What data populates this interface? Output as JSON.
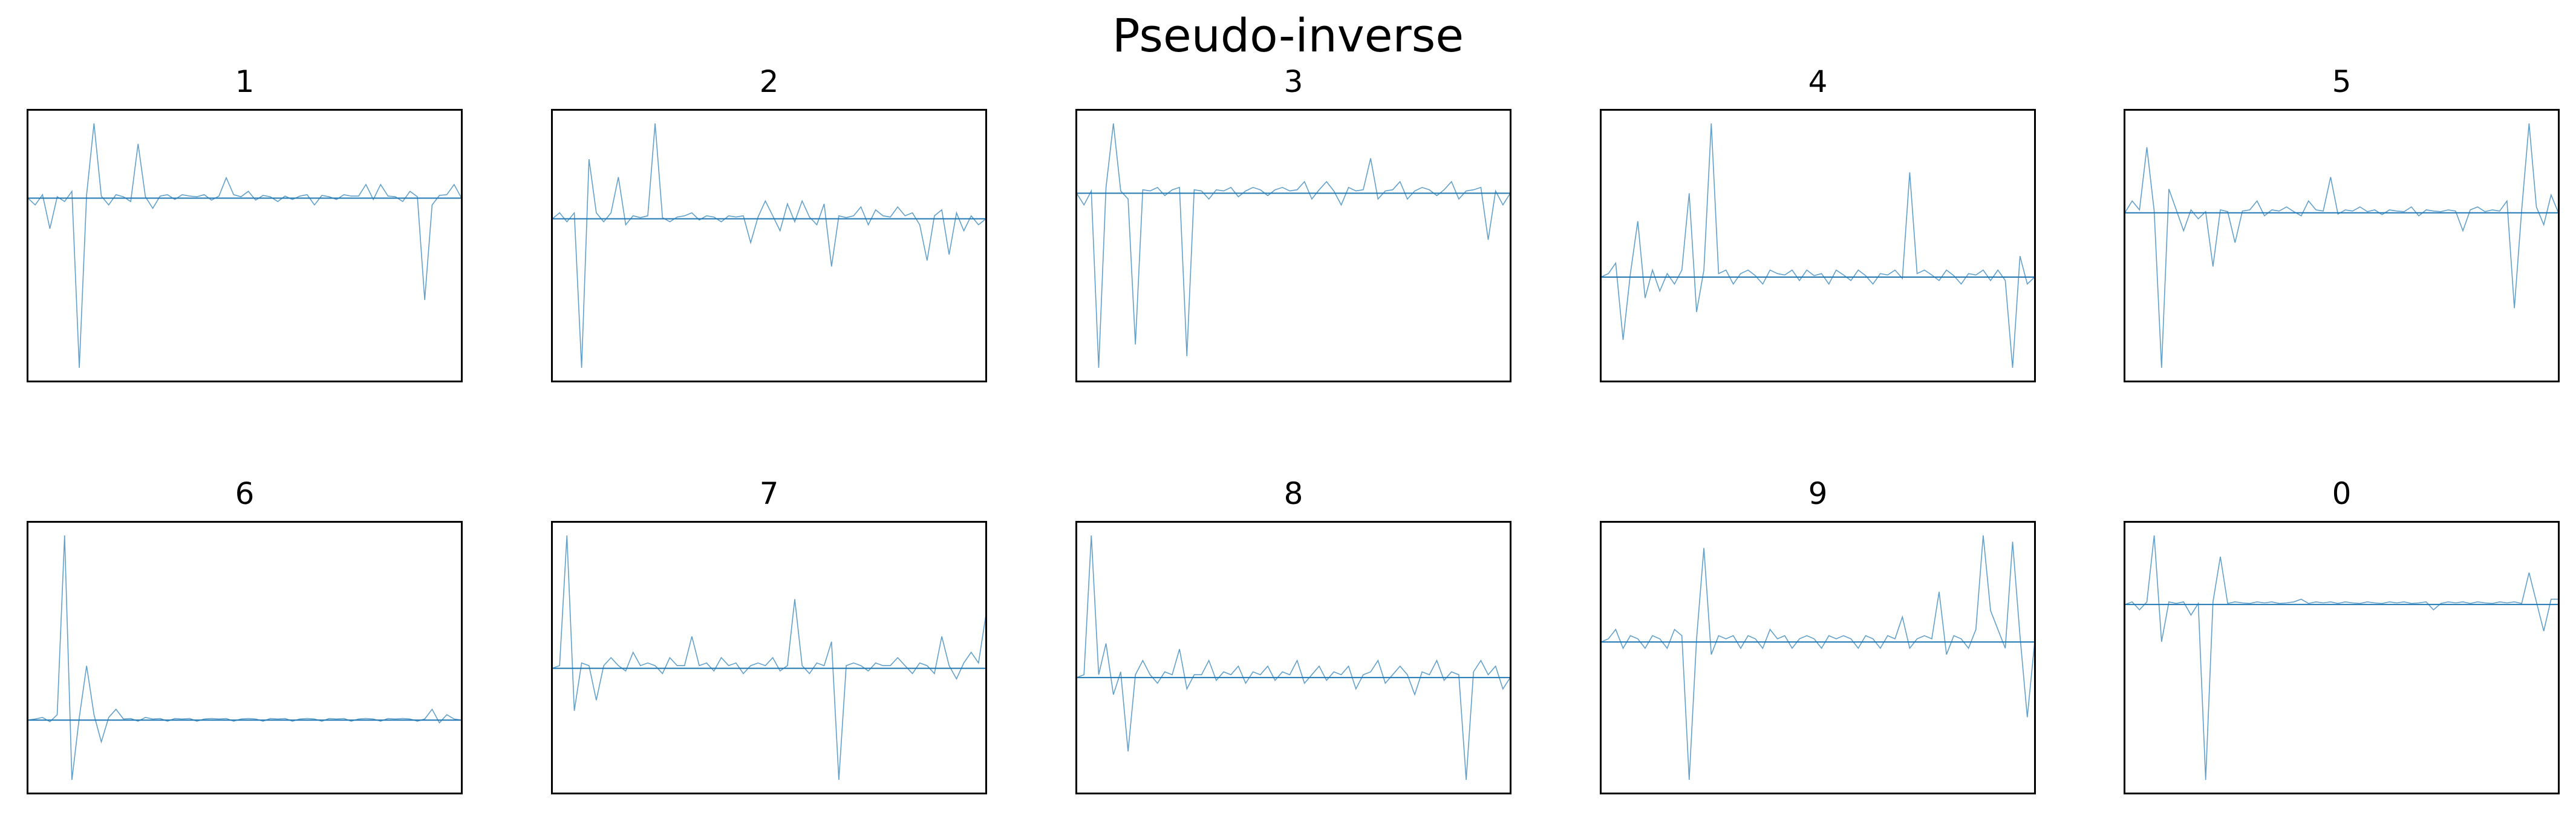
{
  "figure": {
    "title": "Pseudo-inverse",
    "line_color": "#1f77b4",
    "frame_color": "#000000"
  },
  "chart_data": [
    {
      "type": "line",
      "title": "1",
      "series": [
        {
          "values": [
            0,
            -0.1,
            0.05,
            -0.45,
            0.02,
            -0.05,
            0.1,
            -2.5,
            0.05,
            1.1,
            0.03,
            -0.1,
            0.05,
            0.02,
            -0.05,
            0.8,
            0.02,
            -0.15,
            0.03,
            0.05,
            -0.02,
            0.05,
            0.03,
            0.02,
            0.05,
            -0.03,
            0.03,
            0.3,
            0.05,
            0.02,
            0.1,
            -0.03,
            0.04,
            0.02,
            -0.05,
            0.03,
            -0.02,
            0.03,
            0.05,
            -0.1,
            0.04,
            0.02,
            -0.02,
            0.05,
            0.03,
            0.03,
            0.2,
            -0.02,
            0.2,
            0.03,
            0.02,
            -0.05,
            0.1,
            0.02,
            -1.5,
            -0.1,
            0.04,
            0.05,
            0.2,
            0
          ]
        }
      ]
    },
    {
      "type": "line",
      "title": "2",
      "series": [
        {
          "values": [
            0,
            0.1,
            -0.05,
            0.1,
            -2.5,
            1.0,
            0.1,
            -0.05,
            0.1,
            0.7,
            -0.1,
            0.05,
            0.02,
            0.05,
            1.6,
            0.02,
            -0.05,
            0.03,
            0.05,
            0.1,
            -0.02,
            0.05,
            0.03,
            -0.05,
            0.05,
            0.03,
            0.05,
            -0.4,
            0.03,
            0.3,
            0.05,
            -0.2,
            0.25,
            -0.05,
            0.3,
            0.03,
            -0.1,
            0.25,
            -0.8,
            0.05,
            0.02,
            0.05,
            0.2,
            -0.1,
            0.15,
            0.05,
            0.03,
            0.2,
            0.05,
            0.1,
            -0.1,
            -0.7,
            0.05,
            0.15,
            -0.6,
            0.1,
            -0.2,
            0.05,
            -0.1,
            0
          ]
        }
      ]
    },
    {
      "type": "line",
      "title": "3",
      "series": [
        {
          "values": [
            0,
            -0.1,
            0.02,
            -1.5,
            0.05,
            0.6,
            0.02,
            -0.05,
            -1.3,
            0.03,
            0.02,
            0.05,
            -0.02,
            0.03,
            0.05,
            -1.4,
            0.03,
            0.02,
            -0.05,
            0.03,
            0.02,
            0.05,
            -0.03,
            0.02,
            0.05,
            0.03,
            -0.02,
            0.03,
            0.05,
            0.02,
            0.03,
            0.1,
            -0.05,
            0.03,
            0.1,
            0.02,
            -0.1,
            0.05,
            0.02,
            0.03,
            0.3,
            -0.05,
            0.02,
            0.03,
            0.1,
            -0.05,
            0.02,
            0.05,
            0.03,
            -0.02,
            0.03,
            0.1,
            -0.05,
            0.02,
            0.03,
            0.05,
            -0.4,
            0.02,
            -0.1,
            0
          ]
        }
      ]
    },
    {
      "type": "line",
      "title": "4",
      "series": [
        {
          "values": [
            0,
            0.05,
            0.2,
            -0.9,
            0.05,
            0.8,
            -0.3,
            0.1,
            -0.2,
            0.05,
            -0.1,
            0.1,
            1.2,
            -0.5,
            0.1,
            2.2,
            0.05,
            0.1,
            -0.1,
            0.05,
            0.1,
            0.02,
            -0.1,
            0.1,
            0.05,
            0.03,
            0.1,
            -0.05,
            0.1,
            0.02,
            0.05,
            -0.1,
            0.1,
            0.03,
            -0.05,
            0.1,
            0.02,
            -0.1,
            0.05,
            0.03,
            0.1,
            -0.02,
            1.5,
            0.05,
            0.1,
            0.03,
            -0.05,
            0.1,
            0.02,
            -0.1,
            0.05,
            0.03,
            0.1,
            -0.05,
            0.1,
            -0.05,
            -1.3,
            0.3,
            -0.1,
            0
          ]
        }
      ]
    },
    {
      "type": "line",
      "title": "5",
      "series": [
        {
          "values": [
            0,
            0.2,
            0.05,
            1.1,
            0.03,
            -2.6,
            0.4,
            0.05,
            -0.3,
            0.05,
            -0.1,
            0.02,
            -0.9,
            0.05,
            0.02,
            -0.5,
            0.03,
            0.05,
            0.2,
            -0.05,
            0.05,
            0.03,
            0.1,
            0.02,
            -0.05,
            0.2,
            0.05,
            0.03,
            0.6,
            -0.02,
            0.05,
            0.03,
            0.1,
            0.02,
            0.05,
            -0.03,
            0.05,
            0.03,
            0.02,
            0.1,
            -0.05,
            0.05,
            0.03,
            0.02,
            0.05,
            0.03,
            -0.3,
            0.05,
            0.1,
            0.02,
            0.05,
            0.03,
            0.2,
            -1.6,
            0.05,
            1.5,
            0.1,
            -0.2,
            0.3,
            0
          ]
        }
      ]
    },
    {
      "type": "line",
      "title": "6",
      "series": [
        {
          "values": [
            0,
            0.02,
            0.05,
            -0.03,
            0.1,
            3.4,
            -1.1,
            0.05,
            1.0,
            0.1,
            -0.4,
            0.05,
            0.2,
            0.02,
            0.03,
            -0.02,
            0.05,
            0.02,
            0.03,
            -0.02,
            0.03,
            0.02,
            0.03,
            -0.02,
            0.02,
            0.03,
            0.02,
            0.03,
            -0.02,
            0.02,
            0.03,
            0.02,
            -0.02,
            0.03,
            0.02,
            0.03,
            -0.02,
            0.02,
            0.03,
            0.02,
            -0.02,
            0.03,
            0.02,
            0.03,
            -0.02,
            0.02,
            0.03,
            0.02,
            -0.02,
            0.03,
            0.02,
            0.03,
            0.02,
            -0.02,
            0.02,
            0.2,
            -0.05,
            0.1,
            0.02,
            0
          ]
        }
      ]
    },
    {
      "type": "line",
      "title": "7",
      "series": [
        {
          "values": [
            0,
            0.05,
            2.5,
            -0.8,
            0.1,
            0.05,
            -0.6,
            0.05,
            0.2,
            0.05,
            -0.05,
            0.3,
            0.05,
            0.1,
            0.05,
            -0.1,
            0.2,
            0.05,
            0.05,
            0.6,
            0.05,
            0.1,
            -0.05,
            0.2,
            0.05,
            0.1,
            -0.1,
            0.05,
            0.1,
            0.05,
            0.2,
            -0.05,
            0.05,
            1.3,
            0.05,
            -0.1,
            0.1,
            0.05,
            0.5,
            -2.1,
            0.05,
            0.1,
            0.05,
            -0.05,
            0.1,
            0.05,
            0.05,
            0.2,
            0.05,
            -0.1,
            0.1,
            0.05,
            -0.1,
            0.6,
            0.05,
            -0.2,
            0.1,
            0.3,
            0.1,
            1.0
          ]
        }
      ]
    },
    {
      "type": "line",
      "title": "8",
      "series": [
        {
          "values": [
            0,
            0.05,
            2.5,
            0.05,
            0.6,
            -0.3,
            0.1,
            -1.3,
            0.05,
            0.3,
            0.05,
            -0.1,
            0.1,
            0.05,
            0.5,
            -0.2,
            0.05,
            0.05,
            0.3,
            -0.05,
            0.1,
            0.05,
            0.2,
            -0.1,
            0.1,
            0.05,
            0.2,
            -0.05,
            0.1,
            0.05,
            0.3,
            -0.1,
            0.05,
            0.2,
            -0.05,
            0.1,
            0.05,
            0.2,
            -0.2,
            0.05,
            0.1,
            0.3,
            -0.1,
            0.05,
            0.2,
            0.05,
            -0.3,
            0.1,
            0.05,
            0.3,
            -0.05,
            0.1,
            0.05,
            -1.8,
            0.1,
            0.3,
            0.05,
            0.2,
            -0.2,
            0
          ]
        }
      ]
    },
    {
      "type": "line",
      "title": "9",
      "series": [
        {
          "values": [
            0,
            0.05,
            0.2,
            -0.1,
            0.1,
            0.05,
            -0.1,
            0.1,
            0.05,
            -0.1,
            0.2,
            0.1,
            -2.2,
            0.05,
            1.5,
            -0.2,
            0.1,
            0.05,
            0.1,
            -0.1,
            0.1,
            0.05,
            -0.1,
            0.2,
            0.05,
            0.1,
            -0.1,
            0.05,
            0.1,
            0.05,
            -0.1,
            0.1,
            0.05,
            0.1,
            0.05,
            -0.1,
            0.1,
            0.05,
            -0.1,
            0.1,
            0.05,
            0.4,
            -0.1,
            0.05,
            0.1,
            0.05,
            0.8,
            -0.2,
            0.1,
            0.05,
            -0.1,
            0.2,
            1.7,
            0.5,
            0.2,
            -0.1,
            1.6,
            0.1,
            -1.2,
            0
          ]
        }
      ]
    },
    {
      "type": "line",
      "title": "0",
      "series": [
        {
          "values": [
            0,
            0.05,
            -0.1,
            0.05,
            1.3,
            -0.7,
            0.05,
            0.02,
            0.05,
            -0.2,
            0.02,
            -3.3,
            0.05,
            0.9,
            0.02,
            0.05,
            0.03,
            0.02,
            0.05,
            0.03,
            0.05,
            0.02,
            0.03,
            0.05,
            0.1,
            0.02,
            0.05,
            0.03,
            0.05,
            0.02,
            0.05,
            0.03,
            0.02,
            0.05,
            0.03,
            0.02,
            0.05,
            0.03,
            0.05,
            0.02,
            0.03,
            0.05,
            -0.1,
            0.02,
            0.05,
            0.03,
            0.05,
            0.02,
            0.05,
            0.03,
            0.02,
            0.05,
            0.03,
            0.05,
            0.02,
            0.6,
            0.05,
            -0.5,
            0.1,
            0.1
          ]
        }
      ]
    }
  ]
}
